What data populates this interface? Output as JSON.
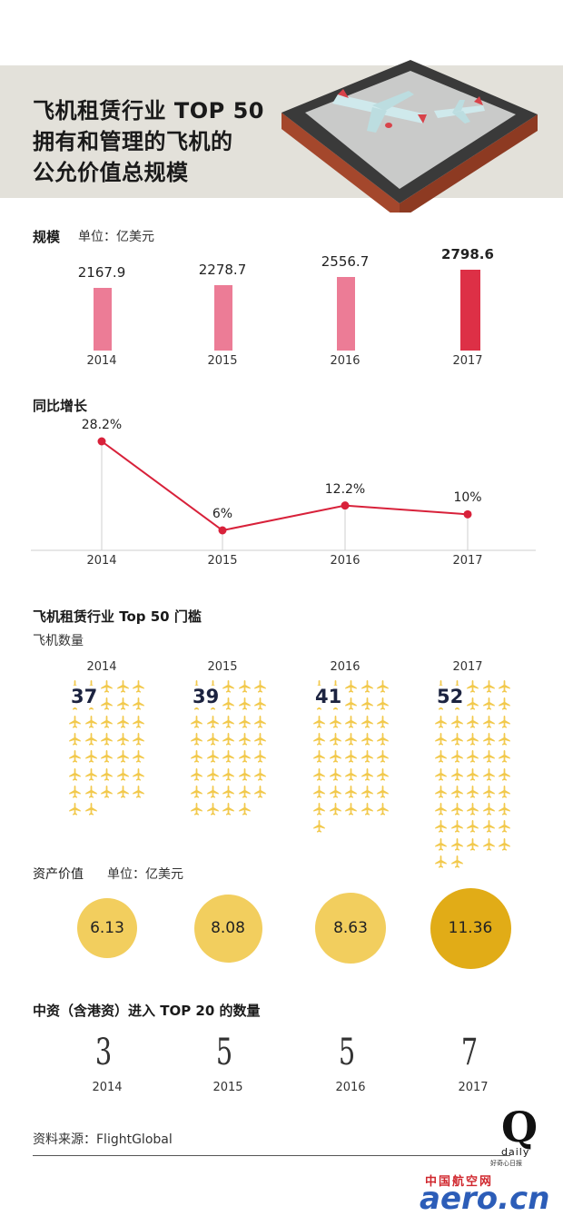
{
  "header": {
    "title_lines": [
      "飞机租赁行业 TOP 50",
      "拥有和管理的飞机的",
      "公允价值总规模"
    ]
  },
  "scale_section": {
    "title": "规模",
    "unit": "单位：亿美元"
  },
  "growth_section": {
    "title": "同比增长"
  },
  "threshold_section": {
    "title": "飞机租赁行业 Top 50 门槛",
    "subtitle": "飞机数量"
  },
  "asset_section": {
    "title": "资产价值",
    "unit": "单位：亿美元"
  },
  "china_section": {
    "title": "中资（含港资）进入 TOP 20 的数量"
  },
  "footer": {
    "source": "资料来源：FlightGlobal",
    "logo_letter": "Q",
    "logo_word": "daily",
    "logo_tagline": "好奇心日报",
    "site_cn": "中国航空网",
    "site_en": "aero.cn"
  },
  "colors": {
    "bar_normal": "#ec7c96",
    "bar_highlight": "#dd3046",
    "line": "#d8213a",
    "plane": "#f2c94c",
    "circle_normal": "#f2ce5e",
    "circle_highlight": "#e1ac17"
  },
  "chart_data": [
    {
      "type": "bar",
      "title": "规模",
      "ylabel": "单位：亿美元",
      "categories": [
        "2014",
        "2015",
        "2016",
        "2017"
      ],
      "values": [
        2167.9,
        2278.7,
        2556.7,
        2798.6
      ],
      "value_labels": [
        "2167.9",
        "2278.7",
        "2556.7",
        "2798.6"
      ],
      "highlight_index": 3
    },
    {
      "type": "line",
      "title": "同比增长",
      "categories": [
        "2014",
        "2015",
        "2016",
        "2017"
      ],
      "values": [
        28.2,
        6,
        12.2,
        10
      ],
      "value_labels": [
        "28.2%",
        "6%",
        "12.2%",
        "10%"
      ],
      "ylim": [
        0,
        30
      ]
    },
    {
      "type": "table",
      "title": "飞机租赁行业 Top 50 门槛",
      "subtitle": "飞机数量",
      "categories": [
        "2014",
        "2015",
        "2016",
        "2017"
      ],
      "values": [
        37,
        39,
        41,
        52
      ],
      "value_labels": [
        "37",
        "39",
        "41",
        "52"
      ],
      "icon": "airplane-icon"
    },
    {
      "type": "scatter",
      "title": "资产价值",
      "ylabel": "单位：亿美元",
      "categories": [
        "2014",
        "2015",
        "2016",
        "2017"
      ],
      "values": [
        6.13,
        8.08,
        8.63,
        11.36
      ],
      "value_labels": [
        "6.13",
        "8.08",
        "8.63",
        "11.36"
      ],
      "highlight_index": 3
    },
    {
      "type": "table",
      "title": "中资（含港资）进入 TOP 20 的数量",
      "categories": [
        "2014",
        "2015",
        "2016",
        "2017"
      ],
      "values": [
        3,
        5,
        5,
        7
      ],
      "value_labels": [
        "3",
        "5",
        "5",
        "7"
      ]
    }
  ]
}
